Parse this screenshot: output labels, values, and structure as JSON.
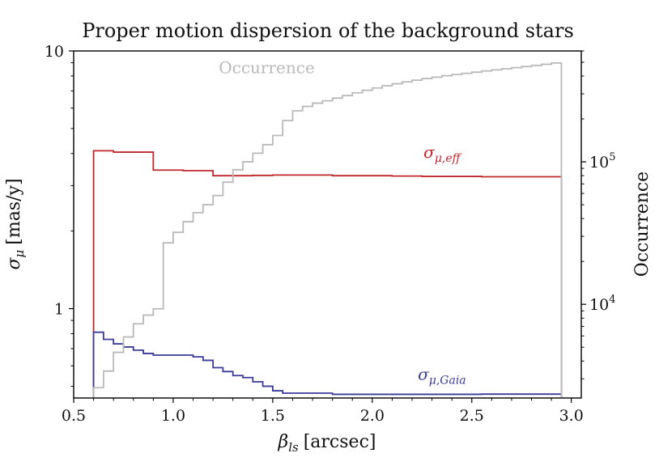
{
  "chart_data": {
    "type": "line",
    "title": "Proper motion dispersion of the background stars",
    "xlabel": "βls [arcsec]",
    "xlabel_symbol": "β",
    "xlabel_sub": "ls",
    "xlabel_unit": "[arcsec]",
    "ylabel": "σμ [mas/y]",
    "ylabel_symbol": "σ",
    "ylabel_sub": "μ",
    "ylabel_unit": "[mas/y]",
    "y2label": "Occurrence",
    "xlim": [
      0.5,
      3.05
    ],
    "ylim": [
      0.45,
      10
    ],
    "yscale": "log",
    "y2lim": [
      2200,
      600000
    ],
    "y2scale": "log",
    "xticks": [
      {
        "value": 0.5,
        "label": "0.5"
      },
      {
        "value": 1.0,
        "label": "1.0"
      },
      {
        "value": 1.5,
        "label": "1.5"
      },
      {
        "value": 2.0,
        "label": "2.0"
      },
      {
        "value": 2.5,
        "label": "2.5"
      },
      {
        "value": 3.0,
        "label": "3.0"
      }
    ],
    "yticks": [
      {
        "value": 1,
        "label": "1"
      },
      {
        "value": 10,
        "label": "10"
      }
    ],
    "y2ticks": [
      {
        "value": 10000,
        "label_base": "10",
        "label_exp": "4"
      },
      {
        "value": 100000,
        "label_base": "10",
        "label_exp": "5"
      }
    ],
    "bin_edges": [
      0.6,
      0.65,
      0.7,
      0.75,
      0.8,
      0.85,
      0.9,
      0.95,
      1.0,
      1.05,
      1.1,
      1.15,
      1.2,
      1.25,
      1.3,
      1.35,
      1.4,
      1.45,
      1.5,
      1.55,
      1.6,
      1.65,
      1.7,
      1.75,
      1.8,
      1.85,
      1.9,
      1.95,
      2.0,
      2.05,
      2.1,
      2.15,
      2.2,
      2.25,
      2.3,
      2.35,
      2.4,
      2.45,
      2.5,
      2.55,
      2.6,
      2.65,
      2.7,
      2.75,
      2.8,
      2.85,
      2.9,
      2.95
    ],
    "series": [
      {
        "name": "σμ,eff",
        "label_symbol": "σ",
        "label_sub": "μ,eff",
        "axis": "left",
        "color": "#c0272d",
        "values": [
          4.1,
          4.1,
          4.05,
          4.05,
          4.05,
          4.05,
          3.45,
          3.45,
          3.45,
          3.43,
          3.43,
          3.43,
          3.28,
          3.28,
          3.28,
          3.28,
          3.29,
          3.29,
          3.3,
          3.3,
          3.3,
          3.3,
          3.3,
          3.3,
          3.28,
          3.28,
          3.28,
          3.28,
          3.28,
          3.28,
          3.27,
          3.27,
          3.27,
          3.26,
          3.26,
          3.26,
          3.26,
          3.26,
          3.26,
          3.25,
          3.25,
          3.25,
          3.25,
          3.25,
          3.25,
          3.25,
          3.25
        ]
      },
      {
        "name": "σμ,Gaia",
        "label_symbol": "σ",
        "label_sub": "μ,Gaia",
        "axis": "left",
        "color": "#3b3b9a",
        "values": [
          0.81,
          0.76,
          0.73,
          0.71,
          0.69,
          0.67,
          0.66,
          0.66,
          0.66,
          0.66,
          0.65,
          0.63,
          0.59,
          0.57,
          0.55,
          0.54,
          0.52,
          0.5,
          0.48,
          0.47,
          0.47,
          0.47,
          0.47,
          0.47,
          0.465,
          0.465,
          0.465,
          0.465,
          0.465,
          0.465,
          0.465,
          0.465,
          0.465,
          0.465,
          0.465,
          0.465,
          0.465,
          0.465,
          0.465,
          0.466,
          0.466,
          0.466,
          0.466,
          0.466,
          0.466,
          0.466,
          0.466
        ]
      },
      {
        "name": "Occurrence",
        "label_symbol": "Occurrence",
        "label_sub": "",
        "axis": "right",
        "color": "#b9b9b9",
        "values": [
          2600,
          3400,
          4600,
          5900,
          7300,
          8400,
          9300,
          27000,
          32000,
          38000,
          44000,
          50000,
          58000,
          72000,
          88000,
          100000,
          115000,
          132000,
          153000,
          195000,
          228000,
          245000,
          258000,
          268000,
          280000,
          292000,
          305000,
          318000,
          330000,
          342000,
          353000,
          364000,
          374000,
          384000,
          393000,
          402000,
          410000,
          418000,
          426000,
          434000,
          442000,
          450000,
          458000,
          466000,
          475000,
          484000,
          494000
        ]
      }
    ],
    "annotations": [
      {
        "series": 2,
        "text": "Occurrence",
        "x": 1.47,
        "value": 420000
      },
      {
        "series": 0,
        "text": "σμ,eff",
        "x": 2.35,
        "value": 3.85
      },
      {
        "series": 1,
        "text": "σμ,Gaia",
        "x": 2.35,
        "value": 0.53
      }
    ],
    "grid": false,
    "legend": "inline labels"
  }
}
